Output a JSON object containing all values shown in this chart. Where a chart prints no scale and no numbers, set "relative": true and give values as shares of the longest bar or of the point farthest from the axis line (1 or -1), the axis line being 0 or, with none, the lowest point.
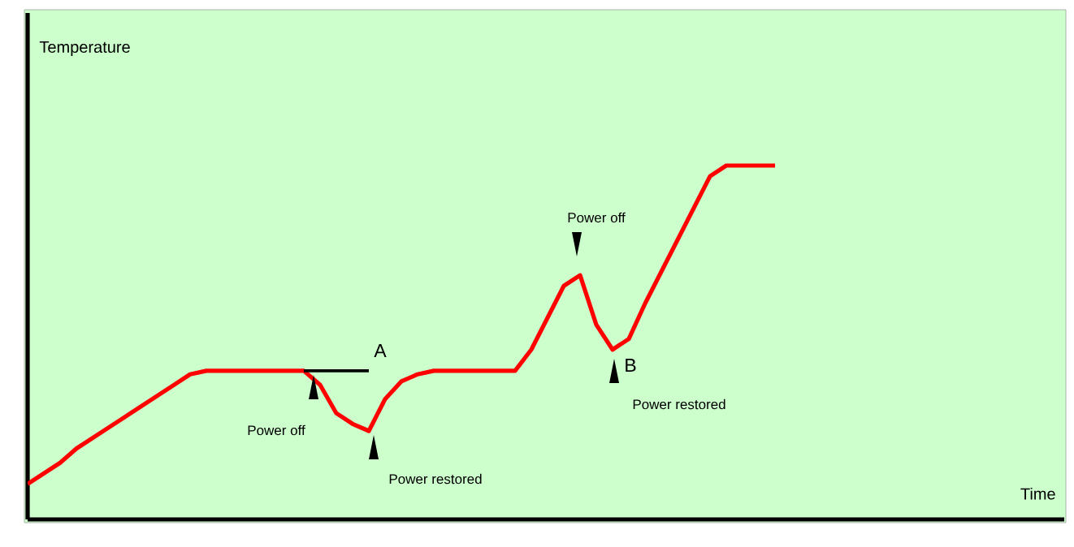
{
  "chart_data": {
    "type": "line",
    "xlabel": "Time",
    "relative": true,
    "categories": [
      null,
      null,
      null,
      null,
      null,
      null,
      null,
      null,
      null,
      null,
      null,
      null,
      null,
      null,
      null,
      null,
      null,
      null,
      null,
      null,
      null,
      null,
      null,
      null,
      null,
      null,
      null,
      null,
      null,
      null,
      null,
      null,
      null,
      null,
      null,
      null,
      null,
      null,
      null,
      null,
      null,
      null,
      null,
      null,
      null,
      null,
      null,
      null,
      null,
      null,
      null,
      null,
      null,
      null,
      null,
      null,
      null,
      null,
      null,
      null,
      null,
      null,
      null,
      null
    ],
    "series": [
      {
        "color": "#ff0000",
        "values": [
          0.1,
          0.13,
          0.16,
          0.2,
          0.23,
          0.26,
          0.29,
          0.32,
          0.35,
          0.38,
          0.41,
          0.42,
          0.42,
          0.42,
          0.42,
          0.42,
          0.42,
          0.42,
          0.38,
          0.3,
          0.27,
          0.25,
          0.34,
          0.39,
          0.41,
          0.42,
          0.42,
          0.42,
          0.42,
          0.42,
          0.42,
          0.48,
          0.57,
          0.66,
          0.69,
          0.55,
          0.48,
          0.51,
          0.61,
          0.7,
          0.79,
          0.88,
          0.97,
          1,
          1,
          1,
          1,
          null,
          null,
          null,
          null,
          null,
          null,
          null,
          null,
          null,
          null,
          null,
          null,
          null,
          null,
          null,
          null,
          null
        ]
      },
      {
        "color": "#000000",
        "values": [
          null,
          null,
          null,
          null,
          null,
          null,
          null,
          null,
          null,
          null,
          null,
          null,
          null,
          null,
          null,
          null,
          null,
          0.42,
          0.42,
          0.42,
          0.42,
          0.42,
          null,
          null,
          null,
          null,
          null,
          null,
          null,
          null,
          null,
          null,
          null,
          null,
          null,
          null,
          null,
          null,
          null,
          null,
          null,
          null,
          null,
          null,
          null,
          null,
          null,
          null,
          null,
          null,
          null,
          null,
          null,
          null,
          null,
          null,
          null,
          null,
          null,
          null,
          null,
          null,
          null,
          null
        ]
      }
    ],
    "annotations": [
      "Temperature",
      "A",
      "Power off",
      "Power restored",
      "Power off",
      "B",
      "Power restored"
    ]
  }
}
